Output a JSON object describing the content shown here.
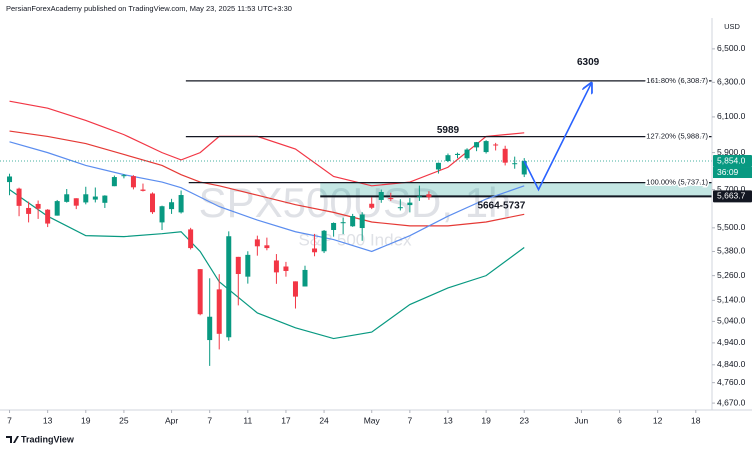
{
  "chart_data": {
    "type": "candlestick",
    "header": "PersianForexAcademy published on TradingView.com, May 23, 2025 11:53 UTC+3:30",
    "watermark": "SPX500USD, 1h",
    "subtitle": "S&P 500 Index",
    "currency": "USD",
    "footer": "TradingView",
    "log_scale": true,
    "xlim": [
      -1,
      73.7
    ],
    "ylim": [
      4640,
      6690
    ],
    "xticks": [
      {
        "value": 0,
        "label": "7"
      },
      {
        "value": 4,
        "label": "13"
      },
      {
        "value": 8,
        "label": "19"
      },
      {
        "value": 12,
        "label": "25"
      },
      {
        "value": 17,
        "label": "Apr"
      },
      {
        "value": 21,
        "label": "7"
      },
      {
        "value": 25,
        "label": "11"
      },
      {
        "value": 29,
        "label": "17"
      },
      {
        "value": 33,
        "label": "24"
      },
      {
        "value": 38,
        "label": "May"
      },
      {
        "value": 42,
        "label": "7"
      },
      {
        "value": 46,
        "label": "13"
      },
      {
        "value": 50,
        "label": "19"
      },
      {
        "value": 54,
        "label": "23"
      },
      {
        "value": 60,
        "label": "Jun"
      },
      {
        "value": 64,
        "label": "6"
      },
      {
        "value": 68,
        "label": "12"
      },
      {
        "value": 72,
        "label": "18"
      }
    ],
    "yticks": [
      {
        "value": 6500,
        "label": "6,500.0"
      },
      {
        "value": 6300,
        "label": "6,300.0"
      },
      {
        "value": 6100,
        "label": "6,100.0"
      },
      {
        "value": 5900,
        "label": "5,900.0"
      },
      {
        "value": 5700,
        "label": "5,700.0"
      },
      {
        "value": 5500,
        "label": "5,500.0"
      },
      {
        "value": 5380,
        "label": "5,380.0"
      },
      {
        "value": 5260,
        "label": "5,260.0"
      },
      {
        "value": 5140,
        "label": "5,140.0"
      },
      {
        "value": 5040,
        "label": "5,040.0"
      },
      {
        "value": 4940,
        "label": "4,940.0"
      },
      {
        "value": 4840,
        "label": "4,840.0"
      },
      {
        "value": 4760,
        "label": "4,760.0"
      },
      {
        "value": 4670,
        "label": "4,670.0"
      }
    ],
    "up_color": "#089981",
    "down_color": "#f23645",
    "x": [
      0,
      1,
      2,
      3,
      4,
      5,
      6,
      7,
      8,
      9,
      10,
      11,
      12,
      13,
      14,
      15,
      16,
      17,
      18,
      19,
      20,
      21,
      22,
      23,
      24,
      25,
      26,
      27,
      28,
      29,
      30,
      31,
      32,
      33,
      34,
      35,
      36,
      37,
      38,
      39,
      40,
      41,
      42,
      43,
      44,
      45,
      46,
      47,
      48,
      49,
      50,
      51,
      52,
      53,
      54
    ],
    "open": [
      5740,
      5705,
      5603,
      5624,
      5594,
      5563,
      5635,
      5654,
      5632,
      5647,
      5630,
      5718,
      5772,
      5772,
      5700,
      5679,
      5528,
      5597,
      5580,
      5492,
      5292,
      4953,
      5193,
      4966,
      5353,
      5255,
      5441,
      5411,
      5335,
      5305,
      5232,
      5207,
      5395,
      5381,
      5489,
      5529,
      5508,
      5499,
      5625,
      5645,
      5655,
      5606,
      5618,
      5663,
      5675,
      5808,
      5854,
      5887,
      5869,
      5929,
      5903,
      5945,
      5921,
      5841,
      5781
    ],
    "high": [
      5785,
      5710,
      5636,
      5642,
      5597,
      5645,
      5703,
      5654,
      5715,
      5711,
      5670,
      5775,
      5783,
      5777,
      5732,
      5685,
      5615,
      5651,
      5695,
      5500,
      5292,
      5247,
      5267,
      5482,
      5353,
      5381,
      5460,
      5450,
      5367,
      5328,
      5232,
      5309,
      5469,
      5489,
      5528,
      5553,
      5572,
      5581,
      5659,
      5700,
      5683,
      5649,
      5655,
      5721,
      5691,
      5846,
      5895,
      5900,
      5924,
      5959,
      5969,
      5954,
      5938,
      5878,
      5870
    ],
    "low": [
      5670,
      5560,
      5528,
      5546,
      5504,
      5563,
      5631,
      5597,
      5622,
      5632,
      5603,
      5718,
      5760,
      5701,
      5690,
      5572,
      5489,
      5572,
      5574,
      5390,
      5069,
      4835,
      4910,
      4950,
      5116,
      5221,
      5359,
      5386,
      5220,
      5255,
      5101,
      5207,
      5356,
      5372,
      5455,
      5468,
      5505,
      5434,
      5597,
      5630,
      5640,
      5590,
      5580,
      5640,
      5646,
      5786,
      5848,
      5869,
      5860,
      5908,
      5895,
      5912,
      5830,
      5812,
      5767
    ],
    "close": [
      5770,
      5614,
      5572,
      5599,
      5522,
      5639,
      5675,
      5615,
      5675,
      5663,
      5668,
      5767,
      5777,
      5712,
      5693,
      5581,
      5612,
      5633,
      5671,
      5397,
      5074,
      5062,
      4982,
      5457,
      5268,
      5363,
      5406,
      5397,
      5276,
      5283,
      5158,
      5288,
      5376,
      5485,
      5525,
      5529,
      5561,
      5569,
      5604,
      5687,
      5650,
      5607,
      5631,
      5664,
      5660,
      5844,
      5886,
      5893,
      5917,
      5958,
      5964,
      5941,
      5845,
      5842,
      5854
    ],
    "overlays": [
      {
        "color": "#f23645",
        "x": [
          0,
          4,
          8,
          12,
          16,
          18,
          20,
          22,
          26,
          30,
          34,
          38,
          42,
          46,
          50,
          54
        ],
        "values": [
          6190,
          6150,
          6080,
          6000,
          5900,
          5860,
          5900,
          5990,
          5990,
          5920,
          5770,
          5720,
          5740,
          5820,
          5990,
          6010
        ]
      },
      {
        "color": "#089981",
        "x": [
          0,
          4,
          8,
          12,
          16,
          18,
          20,
          22,
          26,
          30,
          34,
          38,
          42,
          46,
          50,
          54
        ],
        "values": [
          5700,
          5560,
          5460,
          5455,
          5470,
          5480,
          5380,
          5230,
          5080,
          5010,
          4960,
          4990,
          5120,
          5200,
          5260,
          5400
        ]
      },
      {
        "color": "#e53935",
        "x": [
          0,
          4,
          8,
          12,
          16,
          18,
          20,
          22,
          26,
          30,
          34,
          38,
          42,
          46,
          50,
          54
        ],
        "values": [
          6020,
          5990,
          5950,
          5890,
          5830,
          5780,
          5740,
          5720,
          5670,
          5620,
          5580,
          5530,
          5510,
          5510,
          5530,
          5570
        ]
      },
      {
        "color": "#5b8def",
        "x": [
          0,
          4,
          8,
          12,
          16,
          18,
          20,
          22,
          26,
          30,
          34,
          38,
          42,
          46,
          50,
          54
        ],
        "values": [
          5960,
          5900,
          5830,
          5780,
          5740,
          5710,
          5660,
          5610,
          5540,
          5480,
          5440,
          5380,
          5460,
          5560,
          5650,
          5720
        ]
      }
    ],
    "fib_levels": [
      {
        "value": 6308.7,
        "label": "161.80% (6,308.7)",
        "x_start": 18.5
      },
      {
        "value": 5988.7,
        "label": "127.20% (5,988.7)",
        "x_start": 18.5
      },
      {
        "value": 5737.1,
        "label": "100.00% (5,737.1)",
        "x_start": 18.8
      }
    ],
    "zone": {
      "low": {
        "value": 5663.7,
        "label": "5,663.7"
      },
      "high": 5737.1,
      "x_start": 32.6
    },
    "annotations": [
      {
        "text": "6309",
        "x": 60.7,
        "y": 6420
      },
      {
        "text": "5989",
        "x": 46,
        "y": 6025
      },
      {
        "text": "5664-5737",
        "x": 51.6,
        "y": 5615
      }
    ],
    "projection": {
      "color": "#2962ff",
      "x": [
        54,
        55.5,
        61
      ],
      "values": [
        5854,
        5700,
        6290
      ]
    },
    "last_price": {
      "value": 5854.0,
      "label": "5,854.0",
      "countdown": "36:09"
    }
  }
}
